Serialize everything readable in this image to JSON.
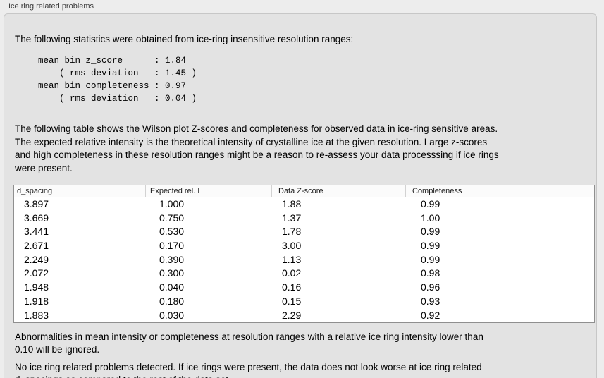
{
  "panel": {
    "title": "Ice ring related problems"
  },
  "intro": "The following statistics were obtained from ice-ring insensitive resolution ranges:",
  "stats_block": [
    "mean bin z_score      : 1.84",
    "    ( rms deviation   : 1.45 )",
    "mean bin completeness : 0.97",
    "    ( rms deviation   : 0.04 )"
  ],
  "description": [
    "The following table shows the Wilson plot Z-scores and completeness for observed data in ice-ring sensitive areas.",
    "The expected relative intensity is the theoretical intensity of crystalline ice at the given resolution. Large z-scores",
    "and high completeness in these resolution ranges might be a reason to re-assess your data processsing if ice rings",
    "were present."
  ],
  "table": {
    "columns": [
      "d_spacing",
      "Expected rel. I",
      "Data Z-score",
      "Completeness"
    ],
    "rows": [
      [
        "3.897",
        "1.000",
        "1.88",
        "0.99"
      ],
      [
        "3.669",
        "0.750",
        "1.37",
        "1.00"
      ],
      [
        "3.441",
        "0.530",
        "1.78",
        "0.99"
      ],
      [
        "2.671",
        "0.170",
        "3.00",
        "0.99"
      ],
      [
        "2.249",
        "0.390",
        "1.13",
        "0.99"
      ],
      [
        "2.072",
        "0.300",
        "0.02",
        "0.98"
      ],
      [
        "1.948",
        "0.040",
        "0.16",
        "0.96"
      ],
      [
        "1.918",
        "0.180",
        "0.15",
        "0.93"
      ],
      [
        "1.883",
        "0.030",
        "2.29",
        "0.92"
      ]
    ]
  },
  "notes": {
    "ignore_rule": [
      "Abnormalities in mean intensity or completeness at resolution ranges with a relative ice ring intensity lower than",
      "0.10 will be ignored."
    ],
    "verdict": [
      "No ice ring related problems detected. If ice rings were present, the data does not look worse at ice ring related",
      "d_spacings as compared to the rest of the data set."
    ]
  }
}
